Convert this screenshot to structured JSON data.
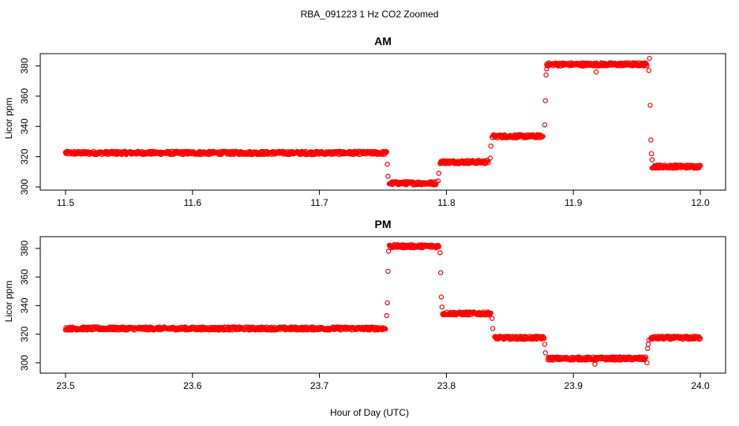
{
  "figure": {
    "title": "RBA_091223  1 Hz CO2 Zoomed",
    "xlabel": "Hour of Day (UTC)",
    "marker_color": "#ff0000"
  },
  "chart_data": [
    {
      "type": "scatter",
      "title": "AM",
      "xlabel": "",
      "ylabel": "Licor ppm",
      "xlim": [
        11.5,
        12.0
      ],
      "ylim": [
        300,
        386
      ],
      "x_ticks": [
        "11.5",
        "11.6",
        "11.7",
        "11.8",
        "11.9",
        "12.0"
      ],
      "y_ticks": [
        "300",
        "320",
        "340",
        "360",
        "380"
      ],
      "grid": false,
      "marker": "open-circle",
      "segments": [
        {
          "x_start": 11.5,
          "x_end": 11.753,
          "y": 322.5
        },
        {
          "x_start": 11.755,
          "x_end": 11.792,
          "y": 302.5
        },
        {
          "x_start": 11.795,
          "x_end": 11.833,
          "y": 316.5
        },
        {
          "x_start": 11.836,
          "x_end": 11.876,
          "y": 333.5
        },
        {
          "x_start": 11.879,
          "x_end": 11.958,
          "y": 381
        },
        {
          "x_start": 11.962,
          "x_end": 12.0,
          "y": 313.5
        }
      ],
      "transition_points": [
        {
          "x": 11.7535,
          "y": 315
        },
        {
          "x": 11.754,
          "y": 307
        },
        {
          "x": 11.7935,
          "y": 304
        },
        {
          "x": 11.794,
          "y": 309
        },
        {
          "x": 11.8345,
          "y": 319
        },
        {
          "x": 11.835,
          "y": 327
        },
        {
          "x": 11.8775,
          "y": 341
        },
        {
          "x": 11.878,
          "y": 357
        },
        {
          "x": 11.8785,
          "y": 374
        },
        {
          "x": 11.879,
          "y": 378
        },
        {
          "x": 11.918,
          "y": 376
        },
        {
          "x": 11.96,
          "y": 385
        },
        {
          "x": 11.9595,
          "y": 377
        },
        {
          "x": 11.9605,
          "y": 354
        },
        {
          "x": 11.961,
          "y": 331
        },
        {
          "x": 11.9615,
          "y": 322
        },
        {
          "x": 11.962,
          "y": 318
        }
      ]
    },
    {
      "type": "scatter",
      "title": "PM",
      "xlabel": "",
      "ylabel": "Licor ppm",
      "xlim": [
        23.5,
        24.0
      ],
      "ylim": [
        295,
        386
      ],
      "x_ticks": [
        "23.5",
        "23.6",
        "23.7",
        "23.8",
        "23.9",
        "24.0"
      ],
      "y_ticks": [
        "300",
        "320",
        "340",
        "360",
        "380"
      ],
      "grid": false,
      "marker": "open-circle",
      "segments": [
        {
          "x_start": 23.5,
          "x_end": 23.752,
          "y": 324
        },
        {
          "x_start": 23.755,
          "x_end": 23.794,
          "y": 381.5
        },
        {
          "x_start": 23.797,
          "x_end": 23.835,
          "y": 334.5
        },
        {
          "x_start": 23.838,
          "x_end": 23.877,
          "y": 317.5
        },
        {
          "x_start": 23.88,
          "x_end": 23.957,
          "y": 303
        },
        {
          "x_start": 23.961,
          "x_end": 24.0,
          "y": 317.5
        }
      ],
      "transition_points": [
        {
          "x": 23.753,
          "y": 333
        },
        {
          "x": 23.7535,
          "y": 342
        },
        {
          "x": 23.754,
          "y": 364
        },
        {
          "x": 23.7545,
          "y": 378
        },
        {
          "x": 23.795,
          "y": 377
        },
        {
          "x": 23.7955,
          "y": 363
        },
        {
          "x": 23.796,
          "y": 346
        },
        {
          "x": 23.7965,
          "y": 339
        },
        {
          "x": 23.836,
          "y": 331
        },
        {
          "x": 23.8365,
          "y": 324
        },
        {
          "x": 23.8775,
          "y": 313
        },
        {
          "x": 23.878,
          "y": 307
        },
        {
          "x": 23.917,
          "y": 299
        },
        {
          "x": 23.958,
          "y": 300
        },
        {
          "x": 23.9585,
          "y": 310
        },
        {
          "x": 23.959,
          "y": 313
        },
        {
          "x": 23.9595,
          "y": 316
        }
      ]
    }
  ]
}
